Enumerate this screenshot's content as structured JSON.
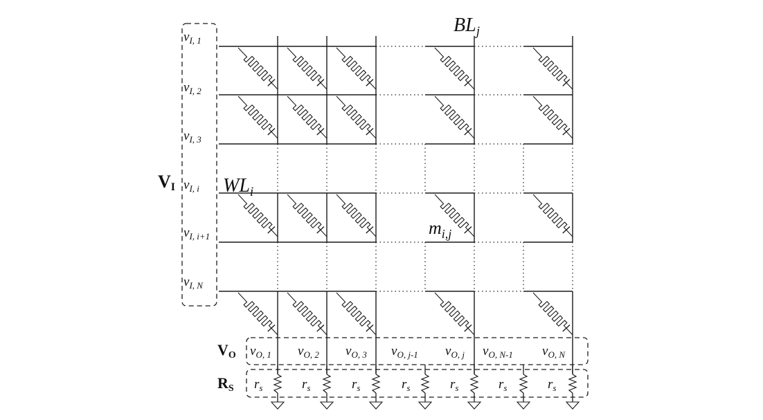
{
  "colors": {
    "ink": "#1a1a1a",
    "background": "#ffffff"
  },
  "groups": {
    "input_voltages": "V",
    "input_voltages_sub": "I",
    "output_voltages": "V",
    "output_voltages_sub": "O",
    "sense_resistors": "R",
    "sense_resistors_sub": "S"
  },
  "wordlines": [
    {
      "base": "v",
      "sub": "I, 1"
    },
    {
      "base": "v",
      "sub": "I, 2"
    },
    {
      "base": "v",
      "sub": "I, 3"
    },
    {
      "base": "v",
      "sub": "I, i"
    },
    {
      "base": "v",
      "sub": "I, i+1"
    },
    {
      "base": "v",
      "sub": "I, N"
    }
  ],
  "outputs": [
    {
      "base": "v",
      "sub": "O, 1"
    },
    {
      "base": "v",
      "sub": "O, 2"
    },
    {
      "base": "v",
      "sub": "O, 3"
    },
    {
      "base": "v",
      "sub": "O, j-1"
    },
    {
      "base": "v",
      "sub": "O, j"
    },
    {
      "base": "v",
      "sub": "O, N-1"
    },
    {
      "base": "v",
      "sub": "O, N"
    }
  ],
  "sense": {
    "base": "r",
    "sub": "s"
  },
  "annotations": {
    "bitline": {
      "base": "BL",
      "sub": "j"
    },
    "wordline": {
      "base": "WL",
      "sub": "i"
    },
    "memristor": {
      "base": "m",
      "sub": "i,j"
    }
  },
  "icons": {
    "memristor": "memristor-icon",
    "resistor": "resistor-icon",
    "ground": "ground-icon"
  }
}
